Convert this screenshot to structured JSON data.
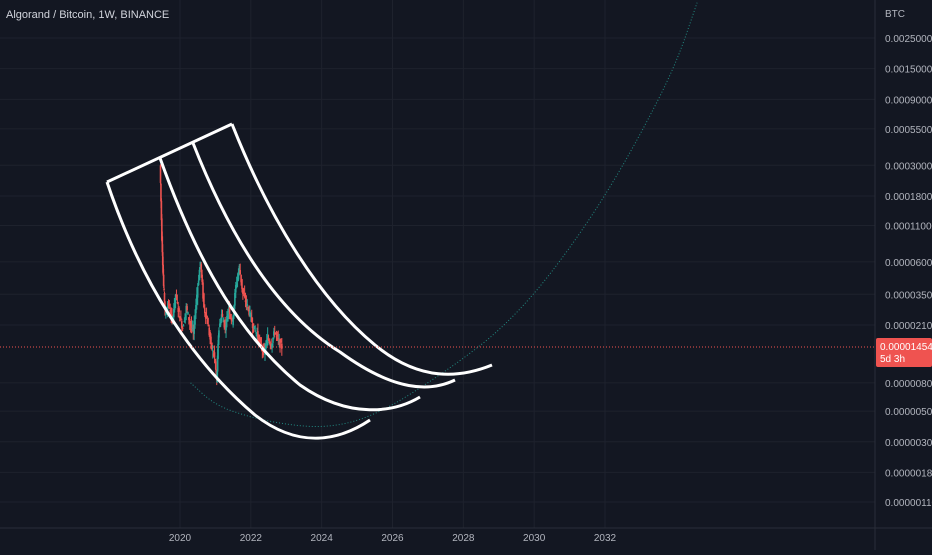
{
  "header": {
    "symbol": "Algorand / Bitcoin",
    "interval": "1W",
    "exchange": "BINANCE"
  },
  "colors": {
    "background": "#131722",
    "grid": "#1e222d",
    "text": "#b2b5be",
    "up": "#26a69a",
    "down": "#ef5350",
    "drawing": "#ffffff",
    "curve": "#26a69a",
    "price_line": "#ef5350"
  },
  "chart_data": {
    "type": "candlestick",
    "log_scale": true,
    "grid": true,
    "y_unit": "BTC",
    "y_ticks": [
      "0.00250000",
      "0.00150000",
      "0.00090000",
      "0.00055000",
      "0.00030000",
      "0.00018000",
      "0.00011000",
      "0.00006000",
      "0.00003500",
      "0.00002100",
      "0.00000800",
      "0.00000500",
      "0.00000300",
      "0.00000180",
      "0.00000110"
    ],
    "x_ticks": [
      "2020",
      "2022",
      "2024",
      "2026",
      "2028",
      "2030",
      "2032"
    ],
    "ylim": [
      8e-07,
      0.0045
    ],
    "xlim": [
      2018.6,
      2034.8
    ],
    "last_price": {
      "label": "0.00001454",
      "countdown": "5d 3h",
      "value": 1.454e-05
    },
    "price_path": [
      [
        2019.45,
        0.0003
      ],
      [
        2019.5,
        9e-05
      ],
      [
        2019.55,
        4e-05
      ],
      [
        2019.6,
        2.5e-05
      ],
      [
        2019.7,
        3e-05
      ],
      [
        2019.8,
        2.2e-05
      ],
      [
        2019.9,
        3.5e-05
      ],
      [
        2020.0,
        2.5e-05
      ],
      [
        2020.1,
        2e-05
      ],
      [
        2020.2,
        2.8e-05
      ],
      [
        2020.3,
        2.2e-05
      ],
      [
        2020.4,
        1.8e-05
      ],
      [
        2020.5,
        3.5e-05
      ],
      [
        2020.6,
        6e-05
      ],
      [
        2020.7,
        2.8e-05
      ],
      [
        2020.8,
        2.2e-05
      ],
      [
        2020.9,
        1.5e-05
      ],
      [
        2021.0,
        1.2e-05
      ],
      [
        2021.05,
        8e-06
      ],
      [
        2021.1,
        1.8e-05
      ],
      [
        2021.2,
        2.5e-05
      ],
      [
        2021.3,
        2e-05
      ],
      [
        2021.4,
        2.8e-05
      ],
      [
        2021.5,
        2.2e-05
      ],
      [
        2021.6,
        4e-05
      ],
      [
        2021.7,
        5.5e-05
      ],
      [
        2021.8,
        3.5e-05
      ],
      [
        2021.9,
        3e-05
      ],
      [
        2022.0,
        2.5e-05
      ],
      [
        2022.1,
        2e-05
      ],
      [
        2022.2,
        1.8e-05
      ],
      [
        2022.3,
        1.5e-05
      ],
      [
        2022.4,
        1.3e-05
      ],
      [
        2022.5,
        1.7e-05
      ],
      [
        2022.6,
        1.5e-05
      ],
      [
        2022.7,
        1.9e-05
      ],
      [
        2022.8,
        1.6e-05
      ],
      [
        2022.9,
        1.45e-05
      ]
    ],
    "curve_points": [
      [
        2020.3,
        8e-06
      ],
      [
        2021.0,
        5.5e-06
      ],
      [
        2022.0,
        4.5e-06
      ],
      [
        2023.0,
        4e-06
      ],
      [
        2024.0,
        3.8e-06
      ],
      [
        2025.0,
        4.2e-06
      ],
      [
        2026.0,
        5.5e-06
      ],
      [
        2027.0,
        8e-06
      ],
      [
        2028.0,
        1.2e-05
      ],
      [
        2029.0,
        1.9e-05
      ],
      [
        2030.0,
        3.5e-05
      ],
      [
        2031.0,
        7.5e-05
      ],
      [
        2032.0,
        0.00018
      ],
      [
        2033.0,
        0.0005
      ],
      [
        2034.0,
        0.0016
      ],
      [
        2034.6,
        0.0045
      ]
    ]
  }
}
